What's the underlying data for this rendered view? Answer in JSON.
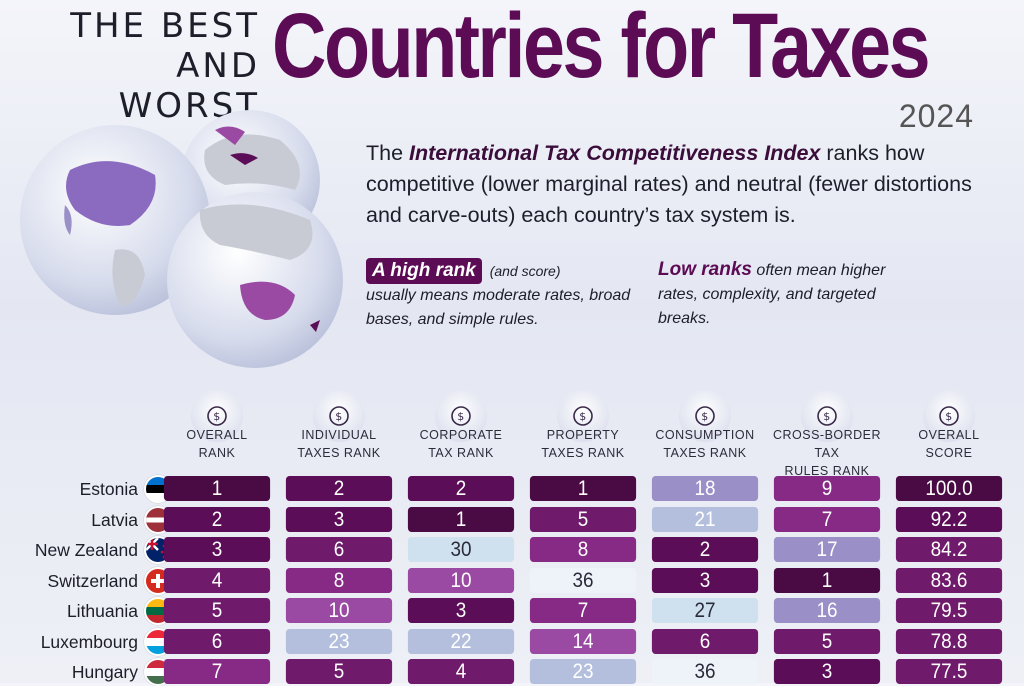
{
  "header": {
    "kicker_line1": "THE BEST",
    "kicker_line2": "AND WORST",
    "title": "Countries for Taxes",
    "year": "2024"
  },
  "intro": {
    "prefix": "The ",
    "index_name": "International Tax Competitiveness Index",
    "suffix": " ranks how competitive (lower marginal rates) and neutral (fewer distortions and carve-outs) each country’s tax system is."
  },
  "notes": {
    "high_lead": "A high rank",
    "high_paren": " (and score)",
    "high_text": "usually means moderate rates, broad bases, and simple rules.",
    "low_lead": "Low ranks",
    "low_text": " often mean higher rates, complexity, and targeted breaks."
  },
  "colors": {
    "title": "#5c0b55",
    "scale": [
      "#4a0b45",
      "#5c0d57",
      "#6f1a6a",
      "#862a86",
      "#9a4aa2",
      "#9a8fc6",
      "#b3bfdc",
      "#cfe0ee",
      "#eef3f9"
    ]
  },
  "chart_data": {
    "type": "table",
    "columns": [
      {
        "key": "overall_rank",
        "label": "OVERALL\nRANK",
        "icon": "money-bag-hand-icon"
      },
      {
        "key": "individual",
        "label": "INDIVIDUAL\nTAXES RANK",
        "icon": "person-icon"
      },
      {
        "key": "corporate",
        "label": "CORPORATE\nTAX RANK",
        "icon": "people-coins-icon"
      },
      {
        "key": "property",
        "label": "PROPERTY\nTAXES RANK",
        "icon": "house-dollar-icon"
      },
      {
        "key": "consumption",
        "label": "CONSUMPTION\nTAXES RANK",
        "icon": "shopping-bag-dollar-icon"
      },
      {
        "key": "crossborder",
        "label": "CROSS-BORDER TAX\nRULES RANK",
        "icon": "globe-dollar-icon"
      },
      {
        "key": "score",
        "label": "OVERALL\nSCORE",
        "icon": "magnifier-dollar-icon"
      }
    ],
    "rows": [
      {
        "country": "Estonia",
        "flag": "estonia",
        "values": [
          1,
          2,
          2,
          1,
          18,
          9,
          "100.0"
        ]
      },
      {
        "country": "Latvia",
        "flag": "latvia",
        "values": [
          2,
          3,
          1,
          5,
          21,
          7,
          "92.2"
        ]
      },
      {
        "country": "New Zealand",
        "flag": "new-zealand",
        "values": [
          3,
          6,
          30,
          8,
          2,
          17,
          "84.2"
        ]
      },
      {
        "country": "Switzerland",
        "flag": "switzerland",
        "values": [
          4,
          8,
          10,
          36,
          3,
          1,
          "83.6"
        ]
      },
      {
        "country": "Lithuania",
        "flag": "lithuania",
        "values": [
          5,
          10,
          3,
          7,
          27,
          16,
          "79.5"
        ]
      },
      {
        "country": "Luxembourg",
        "flag": "luxembourg",
        "values": [
          6,
          23,
          22,
          14,
          6,
          5,
          "78.8"
        ]
      },
      {
        "country": "Hungary",
        "flag": "hungary",
        "values": [
          7,
          5,
          4,
          23,
          36,
          3,
          "77.5"
        ]
      }
    ]
  }
}
